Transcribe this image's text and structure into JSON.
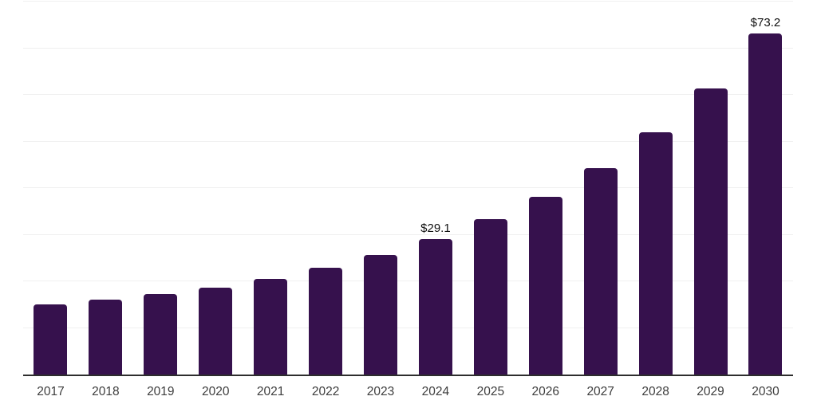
{
  "chart_data": {
    "type": "bar",
    "title": "",
    "categories": [
      "2017",
      "2018",
      "2019",
      "2020",
      "2021",
      "2022",
      "2023",
      "2024",
      "2025",
      "2026",
      "2027",
      "2028",
      "2029",
      "2030"
    ],
    "values": [
      15.0,
      16.0,
      17.3,
      18.6,
      20.5,
      22.9,
      25.6,
      29.1,
      33.3,
      38.2,
      44.3,
      51.9,
      61.3,
      73.2
    ],
    "annotations": [
      {
        "category": "2024",
        "text": "$29.1"
      },
      {
        "category": "2030",
        "text": "$73.2"
      }
    ],
    "xlabel": "",
    "ylabel": "",
    "ylim": [
      0,
      80
    ],
    "grid_step": 10,
    "grid": "horizontal-only",
    "legend": "none",
    "y_axis_tick_labels": "none"
  },
  "colors": {
    "background": "#ffffff",
    "bar": "#36114D",
    "gridline": "#f0f0f0",
    "axis_line": "#2e2e2e",
    "tick_label": "#3d3d3d",
    "value_label": "#111111"
  }
}
